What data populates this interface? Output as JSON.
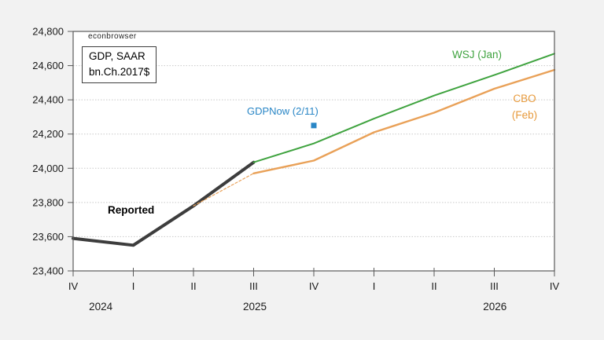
{
  "page": {
    "background_color": "#f2f2f2",
    "plot_background": "#ffffff",
    "border_color": "#595959"
  },
  "annotations": {
    "watermark": "econbrowser",
    "unit_line1": "GDP, SAAR",
    "unit_line2": "bn.Ch.2017$",
    "reported_label": "Reported",
    "wsj_label": "WSJ (Jan)",
    "gdpnow_label": "GDPNow (2/11)",
    "cbo_line1": "CBO",
    "cbo_line2": "(Feb)"
  },
  "chart_data": {
    "type": "line",
    "title": "GDP, SAAR bn.Ch.2017$",
    "watermark": "econbrowser",
    "x_axis": {
      "categories": [
        "IV",
        "I",
        "II",
        "III",
        "IV",
        "I",
        "II",
        "III",
        "IV"
      ],
      "year_labels": [
        {
          "text": "2024",
          "tick_pos": 0.46
        },
        {
          "text": "2025",
          "tick_pos": 3.02
        },
        {
          "text": "2026",
          "tick_pos": 7.01
        }
      ]
    },
    "y_axis": {
      "min": 23400,
      "max": 24800,
      "step": 200,
      "tick_labels": [
        "23,400",
        "23,600",
        "23,800",
        "24,000",
        "24,200",
        "24,400",
        "24,600",
        "24,800"
      ],
      "grid": "dotted"
    },
    "series": [
      {
        "name": "Reported",
        "color": "#3d3d3d",
        "width": 4,
        "points": [
          [
            0,
            23590
          ],
          [
            1,
            23550
          ],
          [
            2,
            23780
          ],
          [
            3,
            24035
          ]
        ]
      },
      {
        "name": "WSJ (Jan)",
        "color": "#3fa33f",
        "width": 2,
        "points": [
          [
            3,
            24035
          ],
          [
            4,
            24145
          ],
          [
            5,
            24290
          ],
          [
            6,
            24425
          ],
          [
            7,
            24545
          ],
          [
            8,
            24670
          ]
        ]
      },
      {
        "name": "CBO dashed lead-in",
        "color": "#e9a158",
        "width": 1.2,
        "dash": "3 2.5",
        "points": [
          [
            2,
            23780
          ],
          [
            3,
            23970
          ]
        ]
      },
      {
        "name": "CBO (Feb)",
        "color": "#e9a158",
        "width": 2.4,
        "points": [
          [
            3,
            23970
          ],
          [
            4,
            24045
          ],
          [
            5,
            24210
          ],
          [
            6,
            24325
          ],
          [
            7,
            24465
          ],
          [
            8,
            24575
          ]
        ]
      },
      {
        "name": "GDPNow (2/11)",
        "color": "#2986c6",
        "marker": "square",
        "marker_size": 7,
        "points": [
          [
            4,
            24250
          ]
        ]
      }
    ]
  }
}
